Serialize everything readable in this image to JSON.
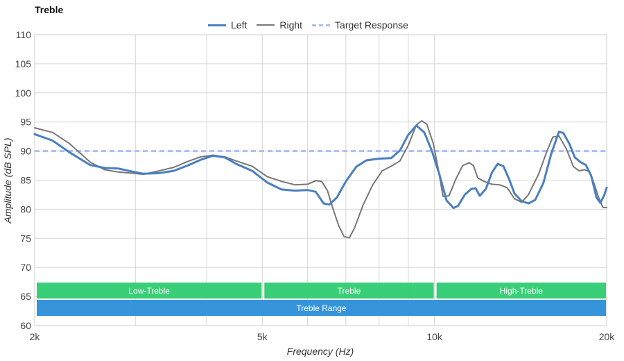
{
  "chart_data": {
    "type": "line",
    "title": "Treble",
    "xlabel": "Frequency (Hz)",
    "ylabel": "Amplitude (dB SPL)",
    "xscale": "log",
    "xlim": [
      2000,
      20000
    ],
    "ylim": [
      60,
      110
    ],
    "y_ticks": [
      60,
      65,
      70,
      75,
      80,
      85,
      90,
      95,
      100,
      105,
      110
    ],
    "x_tick_labels": [
      {
        "value": 2000,
        "label": "2k"
      },
      {
        "value": 5000,
        "label": "5k"
      },
      {
        "value": 10000,
        "label": "10k"
      },
      {
        "value": 20000,
        "label": "20k"
      }
    ],
    "x_gridlines": [
      2000,
      3000,
      4000,
      5000,
      6000,
      7000,
      8000,
      9000,
      10000,
      20000
    ],
    "grid": true,
    "legend_position": "top",
    "series": [
      {
        "name": "Left",
        "color": "#4a7fc1",
        "style": "solid",
        "points": [
          [
            2000,
            92.9
          ],
          [
            2150,
            91.8
          ],
          [
            2300,
            89.8
          ],
          [
            2500,
            87.6
          ],
          [
            2650,
            87.1
          ],
          [
            2800,
            87.0
          ],
          [
            2950,
            86.5
          ],
          [
            3100,
            86.1
          ],
          [
            3300,
            86.2
          ],
          [
            3500,
            86.6
          ],
          [
            3700,
            87.5
          ],
          [
            3900,
            88.5
          ],
          [
            4100,
            89.2
          ],
          [
            4300,
            88.9
          ],
          [
            4500,
            87.8
          ],
          [
            4800,
            86.6
          ],
          [
            5100,
            84.6
          ],
          [
            5400,
            83.4
          ],
          [
            5700,
            83.2
          ],
          [
            6000,
            83.3
          ],
          [
            6200,
            83.0
          ],
          [
            6400,
            81.0
          ],
          [
            6550,
            80.8
          ],
          [
            6750,
            82.0
          ],
          [
            7000,
            84.8
          ],
          [
            7300,
            87.3
          ],
          [
            7600,
            88.4
          ],
          [
            8000,
            88.7
          ],
          [
            8400,
            88.8
          ],
          [
            8700,
            90.1
          ],
          [
            9000,
            92.8
          ],
          [
            9300,
            94.4
          ],
          [
            9600,
            93.2
          ],
          [
            9900,
            90.0
          ],
          [
            10200,
            86.0
          ],
          [
            10500,
            81.5
          ],
          [
            10800,
            80.2
          ],
          [
            11000,
            80.6
          ],
          [
            11300,
            82.5
          ],
          [
            11600,
            83.5
          ],
          [
            11800,
            83.6
          ],
          [
            12000,
            82.3
          ],
          [
            12300,
            83.5
          ],
          [
            12600,
            86.3
          ],
          [
            12900,
            87.8
          ],
          [
            13200,
            87.4
          ],
          [
            13500,
            85.2
          ],
          [
            13800,
            82.7
          ],
          [
            14200,
            81.4
          ],
          [
            14600,
            81.0
          ],
          [
            15000,
            81.6
          ],
          [
            15500,
            84.5
          ],
          [
            16000,
            89.5
          ],
          [
            16500,
            93.3
          ],
          [
            16800,
            93.1
          ],
          [
            17200,
            91.3
          ],
          [
            17600,
            88.9
          ],
          [
            18000,
            88.1
          ],
          [
            18400,
            87.6
          ],
          [
            18800,
            85.7
          ],
          [
            19200,
            82.0
          ],
          [
            19500,
            81.1
          ],
          [
            19800,
            82.4
          ],
          [
            20000,
            83.7
          ]
        ]
      },
      {
        "name": "Right",
        "color": "#777777",
        "style": "solid",
        "points": [
          [
            2000,
            94.0
          ],
          [
            2150,
            93.2
          ],
          [
            2300,
            91.3
          ],
          [
            2500,
            88.1
          ],
          [
            2650,
            86.8
          ],
          [
            2800,
            86.4
          ],
          [
            2950,
            86.2
          ],
          [
            3100,
            86.0
          ],
          [
            3300,
            86.6
          ],
          [
            3500,
            87.2
          ],
          [
            3700,
            88.2
          ],
          [
            3900,
            89.0
          ],
          [
            4100,
            89.3
          ],
          [
            4300,
            89.0
          ],
          [
            4500,
            88.3
          ],
          [
            4800,
            87.4
          ],
          [
            5100,
            85.6
          ],
          [
            5400,
            84.8
          ],
          [
            5700,
            84.2
          ],
          [
            6000,
            84.3
          ],
          [
            6200,
            84.9
          ],
          [
            6350,
            84.8
          ],
          [
            6500,
            83.2
          ],
          [
            6650,
            80.0
          ],
          [
            6800,
            77.2
          ],
          [
            6950,
            75.3
          ],
          [
            7100,
            75.1
          ],
          [
            7250,
            76.8
          ],
          [
            7500,
            80.7
          ],
          [
            7800,
            84.2
          ],
          [
            8100,
            86.6
          ],
          [
            8400,
            87.4
          ],
          [
            8700,
            88.3
          ],
          [
            9000,
            91.0
          ],
          [
            9300,
            94.5
          ],
          [
            9500,
            95.2
          ],
          [
            9700,
            94.6
          ],
          [
            9950,
            91.3
          ],
          [
            10150,
            87.0
          ],
          [
            10350,
            82.2
          ],
          [
            10600,
            82.3
          ],
          [
            10900,
            85.2
          ],
          [
            11200,
            87.5
          ],
          [
            11500,
            88.0
          ],
          [
            11700,
            87.5
          ],
          [
            11900,
            85.4
          ],
          [
            12200,
            84.8
          ],
          [
            12600,
            84.3
          ],
          [
            13000,
            84.2
          ],
          [
            13400,
            83.7
          ],
          [
            13800,
            81.8
          ],
          [
            14200,
            81.2
          ],
          [
            14600,
            82.5
          ],
          [
            15200,
            86.0
          ],
          [
            15700,
            89.8
          ],
          [
            16100,
            92.4
          ],
          [
            16500,
            92.6
          ],
          [
            17000,
            90.4
          ],
          [
            17500,
            87.3
          ],
          [
            17900,
            86.6
          ],
          [
            18300,
            86.8
          ],
          [
            18700,
            86.4
          ],
          [
            19000,
            84.5
          ],
          [
            19400,
            81.8
          ],
          [
            19700,
            80.3
          ],
          [
            20000,
            80.3
          ]
        ]
      },
      {
        "name": "Target Response",
        "color": "#aabff5",
        "style": "dashed",
        "points": [
          [
            2000,
            90.0
          ],
          [
            20000,
            90.0
          ]
        ]
      }
    ],
    "bands": [
      {
        "label": "Low-Treble",
        "x_start": 2000,
        "x_end": 5000,
        "color": "#2ecc71",
        "row": 1
      },
      {
        "label": "Treble",
        "x_start": 5000,
        "x_end": 10000,
        "color": "#2ecc71",
        "row": 1
      },
      {
        "label": "High-Treble",
        "x_start": 10000,
        "x_end": 20000,
        "color": "#2ecc71",
        "row": 1
      },
      {
        "label": "Treble Range",
        "x_start": 2000,
        "x_end": 20000,
        "color": "#2b8fd8",
        "row": 2
      }
    ]
  }
}
